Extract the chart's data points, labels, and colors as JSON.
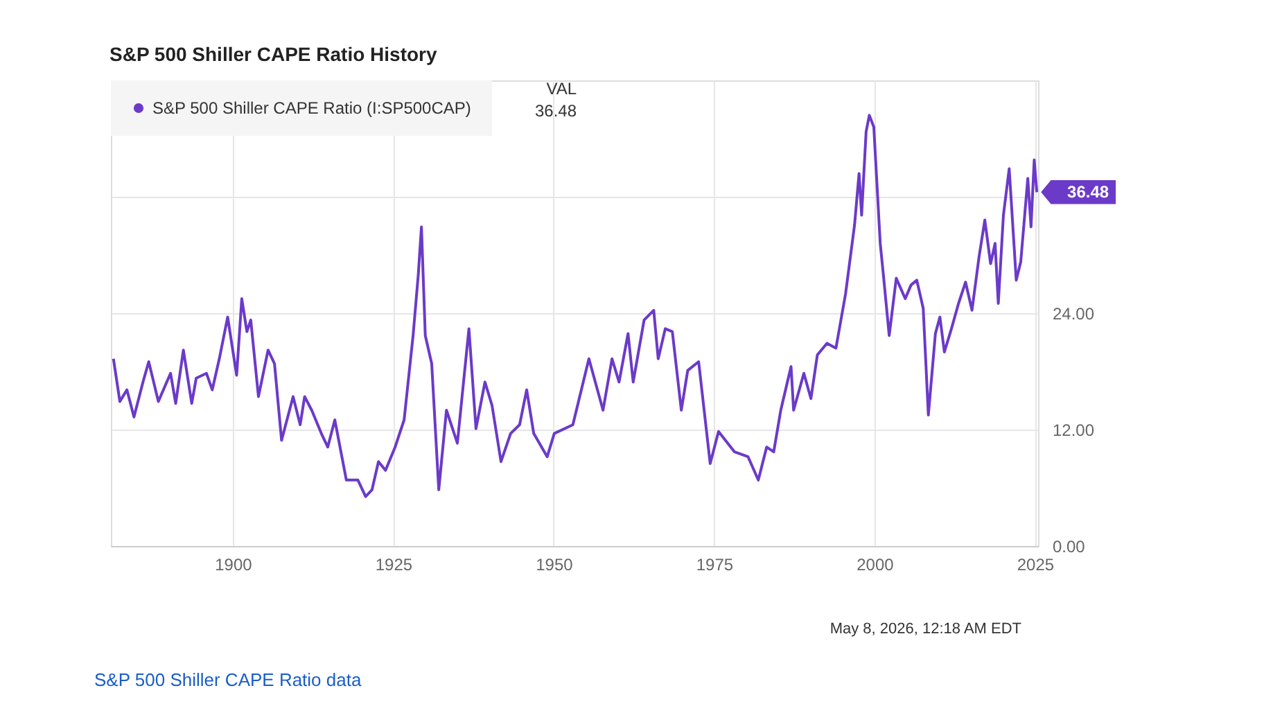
{
  "chart_data": {
    "type": "line",
    "title": "S&P 500 Shiller CAPE Ratio History",
    "x": [
      1881.4,
      1882.4,
      1883.5,
      1884.6,
      1886.0,
      1886.9,
      1888.4,
      1890.3,
      1891.1,
      1892.3,
      1893.6,
      1894.3,
      1895.9,
      1896.8,
      1897.9,
      1899.2,
      1900.6,
      1901.4,
      1902.2,
      1902.8,
      1904.0,
      1905.5,
      1906.5,
      1907.6,
      1909.4,
      1910.5,
      1911.2,
      1912.3,
      1913.8,
      1914.8,
      1915.9,
      1917.7,
      1919.5,
      1920.7,
      1921.7,
      1922.7,
      1923.8,
      1925.3,
      1926.7,
      1928.1,
      1928.9,
      1929.4,
      1930.0,
      1931.0,
      1932.1,
      1933.3,
      1935.0,
      1936.8,
      1937.9,
      1939.3,
      1940.4,
      1941.8,
      1943.3,
      1944.7,
      1945.8,
      1946.9,
      1949.0,
      1950.1,
      1953.0,
      1955.5,
      1957.7,
      1959.1,
      1960.2,
      1961.6,
      1962.4,
      1964.1,
      1965.6,
      1966.3,
      1967.4,
      1968.5,
      1969.9,
      1970.9,
      1972.6,
      1974.4,
      1975.7,
      1978.2,
      1980.3,
      1981.9,
      1983.2,
      1984.3,
      1985.4,
      1987.0,
      1987.4,
      1989.0,
      1990.1,
      1991.1,
      1992.6,
      1994.0,
      1995.5,
      1996.9,
      1997.6,
      1998.0,
      1998.7,
      1999.2,
      1999.9,
      2000.9,
      2001.4,
      2002.3,
      2003.4,
      2004.8,
      2005.7,
      2006.6,
      2007.6,
      2008.4,
      2009.5,
      2010.2,
      2010.9,
      2012.0,
      2013.1,
      2014.2,
      2015.2,
      2016.3,
      2017.2,
      2018.1,
      2018.8,
      2019.3,
      2020.1,
      2021.0,
      2022.1,
      2022.8,
      2023.9,
      2024.4,
      2024.9,
      2025.3
    ],
    "series": [
      {
        "name": "S&P 500 Shiller CAPE Ratio (I:SP500CAP)",
        "color": "#6b3ac9",
        "values": [
          19.3,
          14.9,
          16.1,
          13.3,
          16.9,
          19.0,
          14.9,
          17.8,
          14.7,
          20.2,
          14.7,
          17.3,
          17.8,
          16.1,
          19.3,
          23.6,
          17.6,
          25.5,
          22.1,
          23.3,
          15.4,
          20.2,
          18.8,
          10.9,
          15.4,
          12.5,
          15.4,
          14.0,
          11.6,
          10.2,
          13.0,
          6.8,
          6.8,
          5.1,
          5.8,
          8.7,
          7.8,
          10.2,
          13.0,
          21.7,
          27.9,
          32.9,
          21.7,
          18.8,
          5.8,
          14.0,
          10.6,
          22.4,
          12.1,
          16.9,
          14.5,
          8.7,
          11.6,
          12.5,
          16.1,
          11.6,
          9.2,
          11.6,
          12.5,
          19.3,
          14.0,
          19.3,
          16.9,
          21.9,
          16.9,
          23.3,
          24.3,
          19.3,
          22.4,
          22.1,
          14.0,
          18.1,
          19.0,
          8.5,
          11.8,
          9.7,
          9.2,
          6.8,
          10.2,
          9.7,
          14.0,
          18.5,
          14.0,
          17.8,
          15.2,
          19.7,
          20.9,
          20.4,
          26.0,
          33.1,
          38.4,
          34.1,
          42.7,
          44.4,
          43.2,
          31.2,
          27.9,
          21.7,
          27.6,
          25.5,
          26.9,
          27.4,
          24.5,
          13.5,
          21.9,
          23.6,
          20.0,
          22.4,
          25.0,
          27.2,
          24.3,
          29.8,
          33.6,
          29.1,
          31.2,
          25.0,
          34.1,
          38.9,
          27.4,
          29.3,
          37.9,
          32.9,
          39.8,
          36.48
        ]
      }
    ],
    "xlim": [
      1881,
      2025.5
    ],
    "xticks": [
      1900,
      1925,
      1950,
      1975,
      2000,
      2025
    ],
    "ylim": [
      0,
      48
    ],
    "yticks": [
      {
        "value": 0,
        "label": "0.00"
      },
      {
        "value": 12,
        "label": "12.00"
      },
      {
        "value": 24,
        "label": "24.00"
      },
      {
        "value": 36,
        "label": null
      }
    ],
    "grid": true,
    "legend": "top left",
    "marker": "none",
    "line_style": "solid",
    "annotations": [
      {
        "text": "36.48",
        "x": 2025.3,
        "y": 36.48
      },
      "VAL",
      "36.48",
      "May 8, 2026, 12:18 AM EDT",
      "S&P 500 Shiller CAPE Ratio data"
    ]
  }
}
